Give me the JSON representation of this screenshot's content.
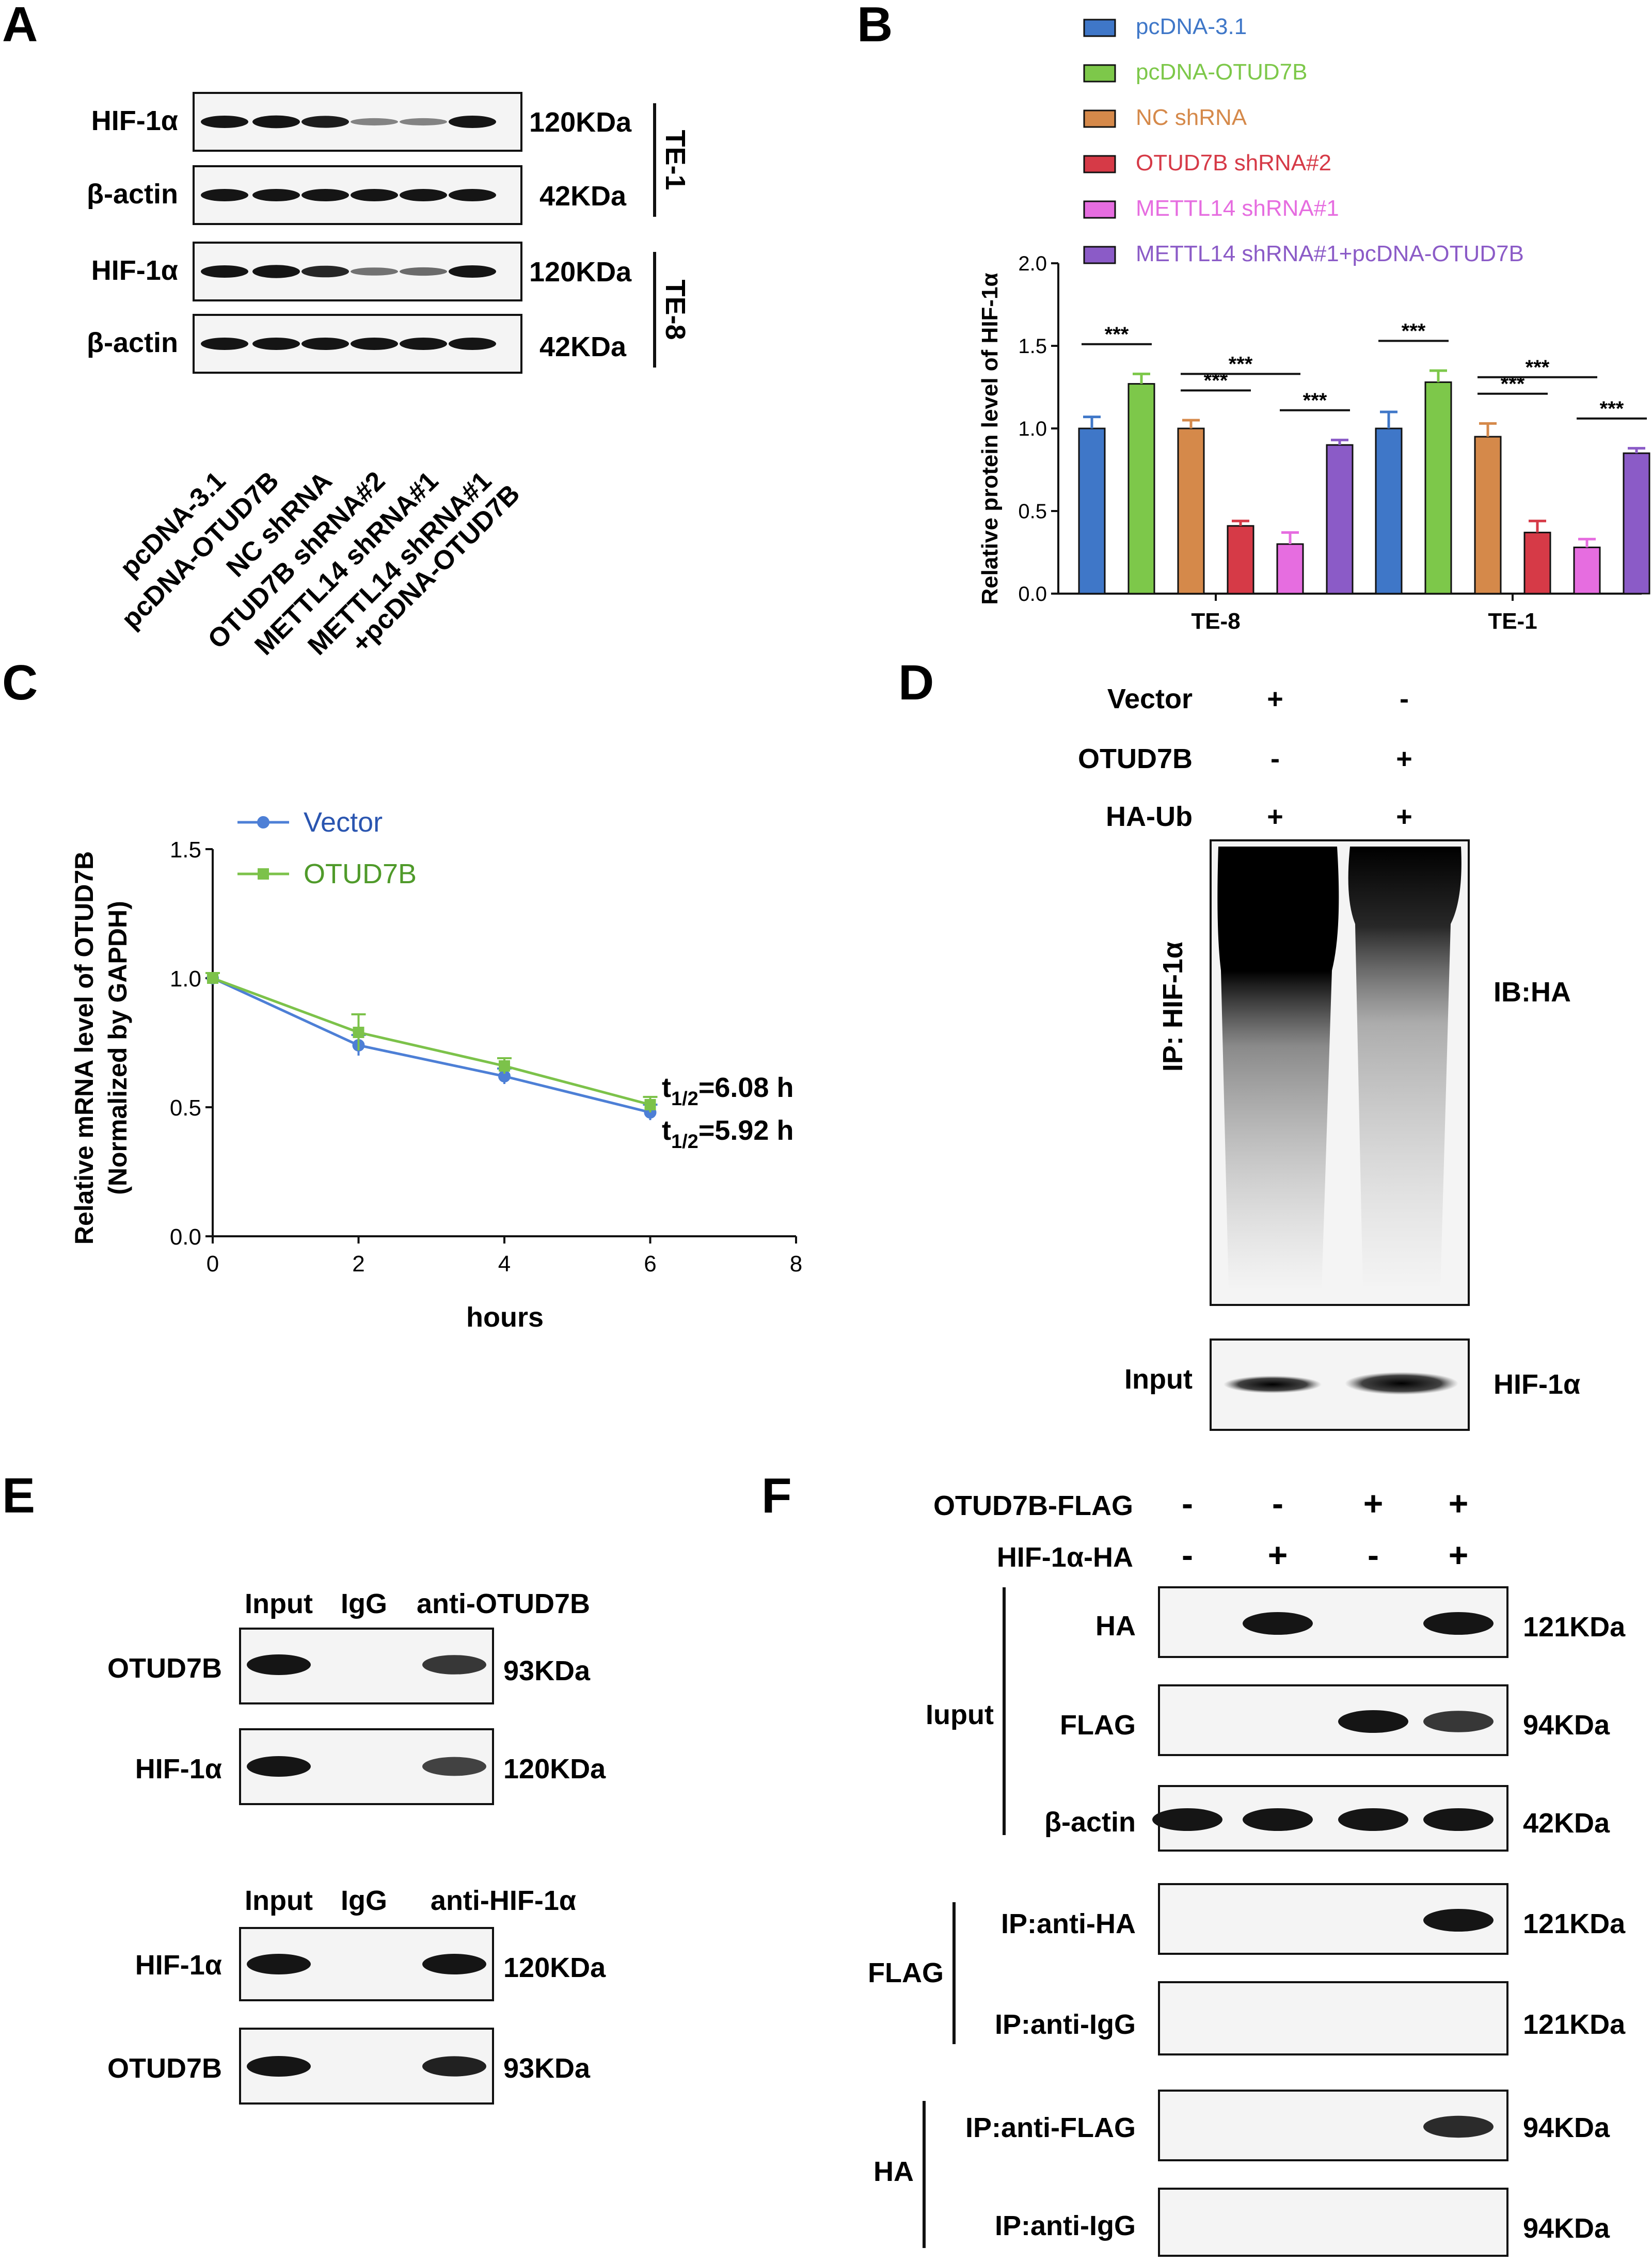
{
  "panels": {
    "a": "A",
    "b": "B",
    "c": "C",
    "d": "D",
    "e": "E",
    "f": "F"
  },
  "colors": {
    "pcdna31": "#3f77c8",
    "pcdna_otud7b": "#7dc84a",
    "nc_shrna": "#d5894a",
    "otud7b_shrna2": "#d63a47",
    "mettl14_shrna1": "#e66de0",
    "mettl14_combo": "#8b5bc7",
    "vector_line": "#4d7fd6",
    "otud7b_line": "#7cc24a",
    "band": "#151515"
  },
  "panelA": {
    "group1": "TE-1",
    "group2": "TE-8",
    "rows": [
      {
        "name": "HIF-1α",
        "mw": "120KDa",
        "intensity": [
          1,
          1.05,
          0.95,
          0.3,
          0.3,
          1
        ]
      },
      {
        "name": "β-actin",
        "mw": "42KDa",
        "intensity": [
          1,
          1,
          1,
          1,
          1,
          1
        ]
      },
      {
        "name": "HIF-1α",
        "mw": "120KDa",
        "intensity": [
          1,
          1.1,
          0.9,
          0.4,
          0.45,
          1
        ]
      },
      {
        "name": "β-actin",
        "mw": "42KDa",
        "intensity": [
          1,
          1,
          1,
          1,
          1,
          1
        ]
      }
    ],
    "lanes": [
      "pcDNA-3.1",
      "pcDNA-OTUD7B",
      "NC shRNA",
      "OTUD7B shRNA#2",
      "METTL14 shRNA#1",
      "METTL14 shRNA#1",
      "+pcDNA-OTUD7B"
    ]
  },
  "chart_data": [
    {
      "type": "bar",
      "panel": "B",
      "title": "",
      "ylabel": "Relative protein level of HIF-1α",
      "categories": [
        "TE-8",
        "TE-1"
      ],
      "ylim": [
        0,
        2.0
      ],
      "yticks": [
        "0.0",
        "0.5",
        "1.0",
        "1.5",
        "2.0"
      ],
      "series": [
        {
          "name": "pcDNA-3.1",
          "values": [
            1.0,
            1.0
          ],
          "errors": [
            0.07,
            0.1
          ]
        },
        {
          "name": "pcDNA-OTUD7B",
          "values": [
            1.27,
            1.28
          ],
          "errors": [
            0.06,
            0.07
          ]
        },
        {
          "name": "NC shRNA",
          "values": [
            1.0,
            0.95
          ],
          "errors": [
            0.05,
            0.08
          ]
        },
        {
          "name": "OTUD7B shRNA#2",
          "values": [
            0.41,
            0.37
          ],
          "errors": [
            0.03,
            0.07
          ]
        },
        {
          "name": "METTL14 shRNA#1",
          "values": [
            0.3,
            0.28
          ],
          "errors": [
            0.07,
            0.05
          ]
        },
        {
          "name": "METTL14 shRNA#1+pcDNA-OTUD7B",
          "values": [
            0.9,
            0.85
          ],
          "errors": [
            0.03,
            0.03
          ]
        }
      ],
      "significance": "***"
    },
    {
      "type": "line",
      "panel": "C",
      "xlabel": "hours",
      "ylabel": "Relative mRNA level of OTUD7B",
      "ylabel2": "(Normalized by GAPDH)",
      "x": [
        0,
        2,
        4,
        6
      ],
      "xlim": [
        0,
        8
      ],
      "ylim": [
        0,
        1.5
      ],
      "xticks": [
        "0",
        "2",
        "4",
        "6",
        "8"
      ],
      "yticks": [
        "0.0",
        "0.5",
        "1.0",
        "1.5"
      ],
      "series": [
        {
          "name": "Vector",
          "values": [
            1.0,
            0.74,
            0.62,
            0.48
          ],
          "errors": [
            0.02,
            0.04,
            0.03,
            0.03
          ]
        },
        {
          "name": "OTUD7B",
          "values": [
            1.0,
            0.79,
            0.66,
            0.51
          ],
          "errors": [
            0.02,
            0.07,
            0.03,
            0.03
          ]
        }
      ],
      "annotations": [
        {
          "t": "t",
          "sub": "1/2",
          "val": "=6.08 h"
        },
        {
          "t": "t",
          "sub": "1/2",
          "val": "=5.92 h"
        }
      ]
    }
  ],
  "panelD": {
    "rows": [
      {
        "label": "Vector",
        "signs": [
          "+",
          "-"
        ]
      },
      {
        "label": "OTUD7B",
        "signs": [
          "-",
          "+"
        ]
      },
      {
        "label": "HA-Ub",
        "signs": [
          "+",
          "+"
        ]
      }
    ],
    "ip": "IP: HIF-1α",
    "ib": "IB:HA",
    "input": "Input",
    "input_protein": "HIF-1α"
  },
  "panelE": {
    "top": {
      "header": [
        "Input",
        "IgG",
        "anti-OTUD7B"
      ],
      "rows": [
        {
          "name": "OTUD7B",
          "mw": "93KDa"
        },
        {
          "name": "HIF-1α",
          "mw": "120KDa"
        }
      ]
    },
    "bottom": {
      "header": [
        "Input",
        "IgG",
        "anti-HIF-1α"
      ],
      "rows": [
        {
          "name": "HIF-1α",
          "mw": "120KDa"
        },
        {
          "name": "OTUD7B",
          "mw": "93KDa"
        }
      ]
    }
  },
  "panelF": {
    "header": [
      {
        "label": "OTUD7B-FLAG",
        "signs": [
          "-",
          "-",
          "+",
          "+"
        ]
      },
      {
        "label": "HIF-1α-HA",
        "signs": [
          "-",
          "+",
          "-",
          "+"
        ]
      }
    ],
    "groups": [
      "Iuput",
      "FLAG",
      "HA"
    ],
    "rows": [
      {
        "name": "HA",
        "mw": "121KDa"
      },
      {
        "name": "FLAG",
        "mw": "94KDa"
      },
      {
        "name": "β-actin",
        "mw": "42KDa"
      },
      {
        "name": "IP:anti-HA",
        "mw": "121KDa"
      },
      {
        "name": "IP:anti-IgG",
        "mw": "121KDa"
      },
      {
        "name": "IP:anti-FLAG",
        "mw": "94KDa"
      },
      {
        "name": "IP:anti-IgG",
        "mw": "94KDa"
      }
    ]
  }
}
